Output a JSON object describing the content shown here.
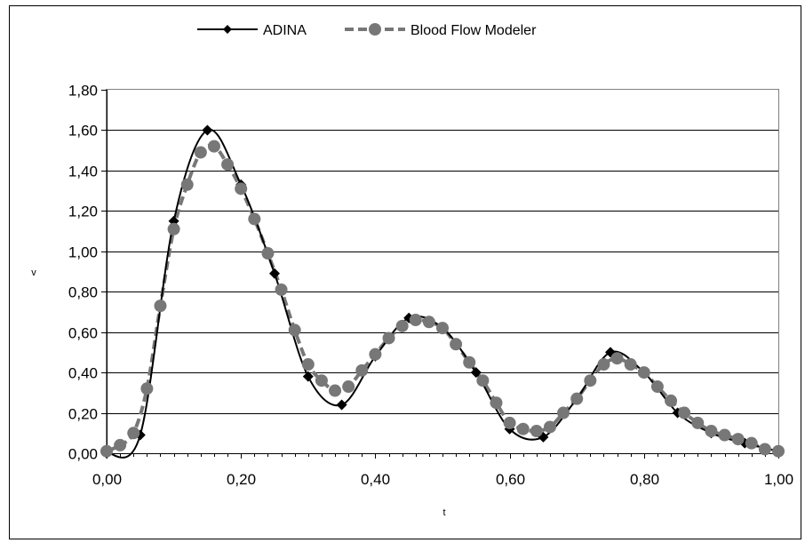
{
  "chart_data": {
    "type": "line",
    "title": "",
    "xlabel": "t",
    "ylabel": "v",
    "xlim": [
      0,
      1
    ],
    "ylim": [
      0,
      1.8
    ],
    "grid": true,
    "legend_position": "top-center",
    "x_ticks": [
      "0,00",
      "0,20",
      "0,40",
      "0,60",
      "0,80",
      "1,00"
    ],
    "y_ticks": [
      "0,00",
      "0,20",
      "0,40",
      "0,60",
      "0,80",
      "1,00",
      "1,20",
      "1,40",
      "1,60",
      "1,80"
    ],
    "series": [
      {
        "name": "ADINA",
        "color": "#000000",
        "line_style": "solid",
        "marker": "diamond",
        "x": [
          0,
          0.05,
          0.1,
          0.15,
          0.2,
          0.25,
          0.3,
          0.35,
          0.4,
          0.45,
          0.5,
          0.55,
          0.6,
          0.65,
          0.7,
          0.75,
          0.8,
          0.85,
          0.9,
          0.95,
          1.0
        ],
        "y": [
          0.0,
          0.09,
          1.15,
          1.6,
          1.33,
          0.89,
          0.38,
          0.24,
          0.48,
          0.67,
          0.62,
          0.4,
          0.12,
          0.08,
          0.27,
          0.5,
          0.4,
          0.2,
          0.1,
          0.05,
          0.01
        ]
      },
      {
        "name": "Blood Flow Modeler",
        "color": "#777777",
        "line_style": "dashed",
        "marker": "circle",
        "x": [
          0.0,
          0.02,
          0.04,
          0.06,
          0.08,
          0.1,
          0.12,
          0.14,
          0.16,
          0.18,
          0.2,
          0.22,
          0.24,
          0.26,
          0.28,
          0.3,
          0.32,
          0.34,
          0.36,
          0.38,
          0.4,
          0.42,
          0.44,
          0.46,
          0.48,
          0.5,
          0.52,
          0.54,
          0.56,
          0.58,
          0.6,
          0.62,
          0.64,
          0.66,
          0.68,
          0.7,
          0.72,
          0.74,
          0.76,
          0.78,
          0.8,
          0.82,
          0.84,
          0.86,
          0.88,
          0.9,
          0.92,
          0.94,
          0.96,
          0.98,
          1.0
        ],
        "y": [
          0.01,
          0.04,
          0.1,
          0.32,
          0.73,
          1.11,
          1.33,
          1.49,
          1.52,
          1.43,
          1.31,
          1.16,
          0.99,
          0.81,
          0.61,
          0.44,
          0.36,
          0.31,
          0.33,
          0.41,
          0.49,
          0.57,
          0.63,
          0.66,
          0.65,
          0.62,
          0.54,
          0.45,
          0.36,
          0.25,
          0.15,
          0.12,
          0.11,
          0.13,
          0.2,
          0.27,
          0.36,
          0.44,
          0.47,
          0.44,
          0.4,
          0.33,
          0.26,
          0.2,
          0.15,
          0.11,
          0.09,
          0.07,
          0.05,
          0.02,
          0.01
        ]
      }
    ]
  }
}
